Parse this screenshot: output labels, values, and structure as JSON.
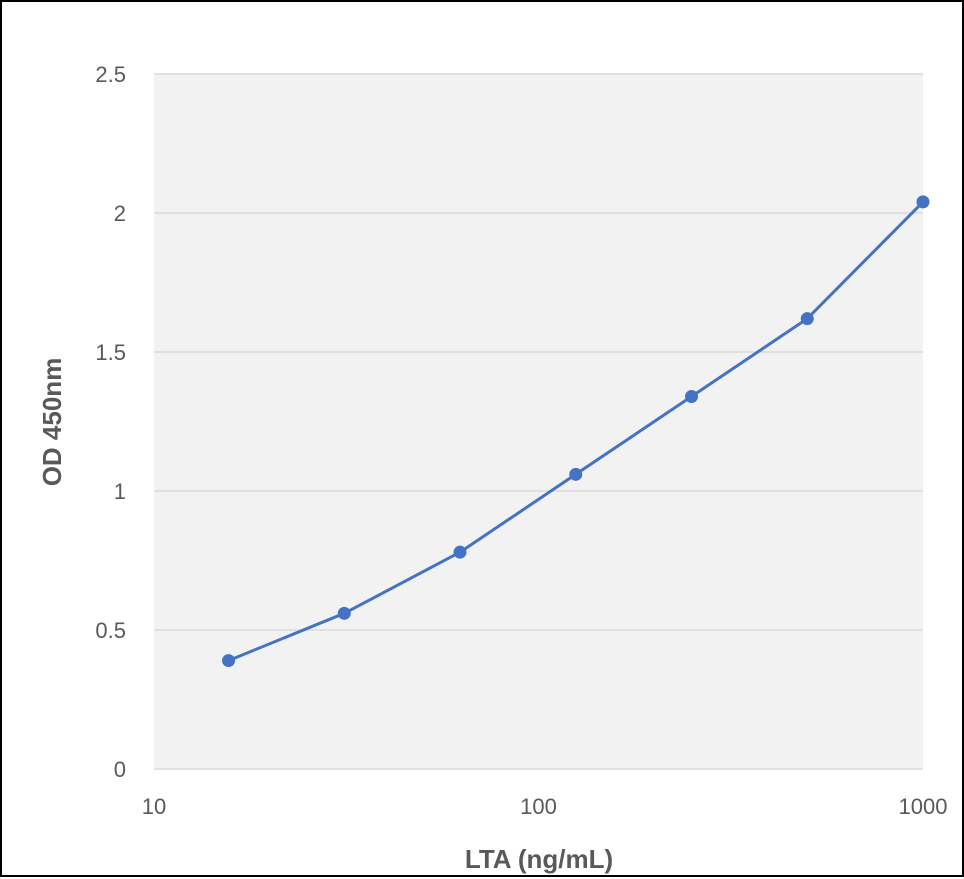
{
  "colors": {
    "plot_background": "#f2f2f2",
    "gridline": "#d9d9d9",
    "series": "#4472c4",
    "text": "#595959"
  },
  "chart_data": {
    "type": "line",
    "title": "",
    "xlabel": "LTA (ng/mL)",
    "ylabel": "OD 450nm",
    "xscale": "log",
    "xlim": [
      10,
      1000
    ],
    "ylim": [
      0,
      2.5
    ],
    "x_ticks": [
      "10",
      "100",
      "1000"
    ],
    "y_ticks": [
      "0",
      "0.5",
      "1",
      "1.5",
      "2",
      "2.5"
    ],
    "grid": "horizontal",
    "legend": "none",
    "series": [
      {
        "x": [
          15.625,
          31.25,
          62.5,
          125,
          250,
          500,
          1000
        ],
        "y": [
          0.39,
          0.56,
          0.78,
          1.06,
          1.34,
          1.62,
          2.04
        ]
      }
    ]
  }
}
